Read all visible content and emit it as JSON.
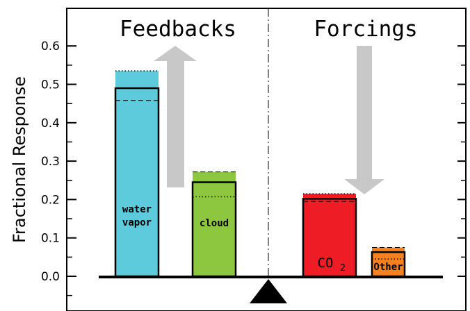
{
  "chart_data": {
    "type": "bar",
    "title": "",
    "ylabel": "Fractional Response",
    "xlabel": "",
    "ylim": [
      0,
      0.6
    ],
    "yticks": [
      "0.0",
      "0.1",
      "0.2",
      "0.3",
      "0.4",
      "0.5",
      "0.6"
    ],
    "grid": false,
    "groups": [
      {
        "title": "Feedbacks",
        "arrow": "up",
        "bars": [
          {
            "label": "water vapor",
            "label_lines": [
              "water",
              "vapor"
            ],
            "value": 0.49,
            "upper": 0.535,
            "dashed": 0.458,
            "dotted": 0.535,
            "color": "#5ecbdc"
          },
          {
            "label": "cloud",
            "label_lines": [
              "cloud"
            ],
            "value": 0.245,
            "upper": 0.272,
            "dashed": 0.272,
            "dotted": 0.207,
            "color": "#8dc63f"
          }
        ]
      },
      {
        "title": "Forcings",
        "arrow": "down",
        "bars": [
          {
            "label": "CO2",
            "label_main": "CO",
            "label_sub": "2",
            "value": 0.202,
            "upper": 0.215,
            "dashed": 0.195,
            "dotted": 0.215,
            "color": "#ee1c25"
          },
          {
            "label": "Other",
            "label_lines": [
              "Other"
            ],
            "value": 0.063,
            "upper": 0.075,
            "dashed": 0.075,
            "dotted": 0.045,
            "color": "#f5821f"
          }
        ]
      }
    ],
    "colors": {
      "arrow": "#c8c8c8",
      "pivot": "#000000",
      "axis": "#000000"
    }
  }
}
